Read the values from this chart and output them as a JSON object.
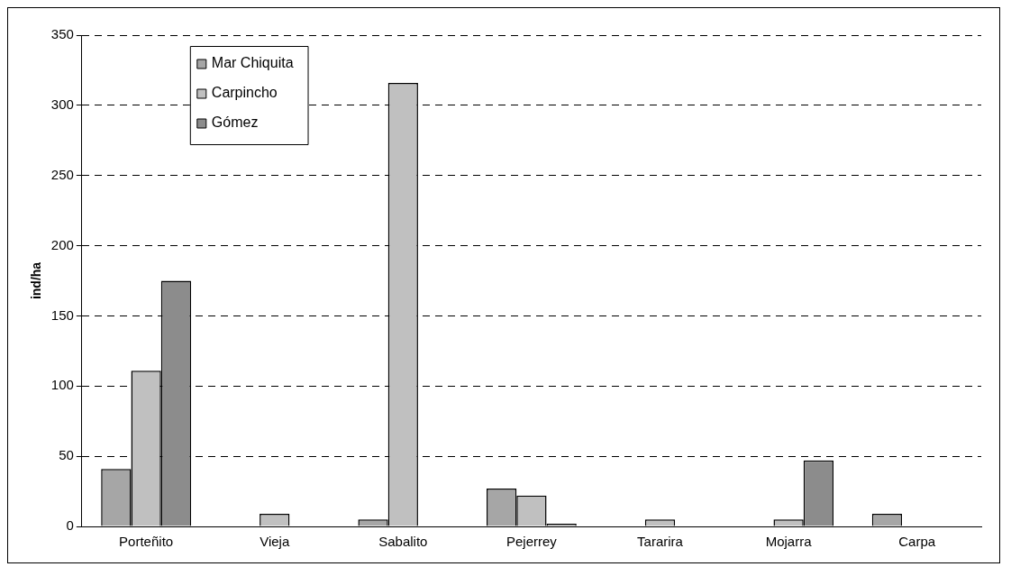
{
  "chart_data": {
    "type": "bar",
    "ylabel": "ind/ha",
    "categories": [
      "Porteñito",
      "Vieja",
      "Sabalito",
      "Pejerrey",
      "Tararira",
      "Mojarra",
      "Carpa"
    ],
    "series": [
      {
        "name": "Mar Chiquita",
        "color": "#a6a6a6",
        "values": [
          41,
          null,
          5,
          27,
          null,
          null,
          9
        ]
      },
      {
        "name": "Carpincho",
        "color": "#c0c0c0",
        "values": [
          111,
          9,
          316,
          22,
          5,
          5,
          null
        ]
      },
      {
        "name": "Gómez",
        "color": "#8c8c8c",
        "values": [
          175,
          null,
          null,
          2,
          null,
          47,
          null
        ]
      }
    ],
    "ylim": [
      0,
      350
    ],
    "yticks": [
      0,
      50,
      100,
      150,
      200,
      250,
      300,
      350
    ],
    "grid": "y",
    "legend": "top left"
  }
}
